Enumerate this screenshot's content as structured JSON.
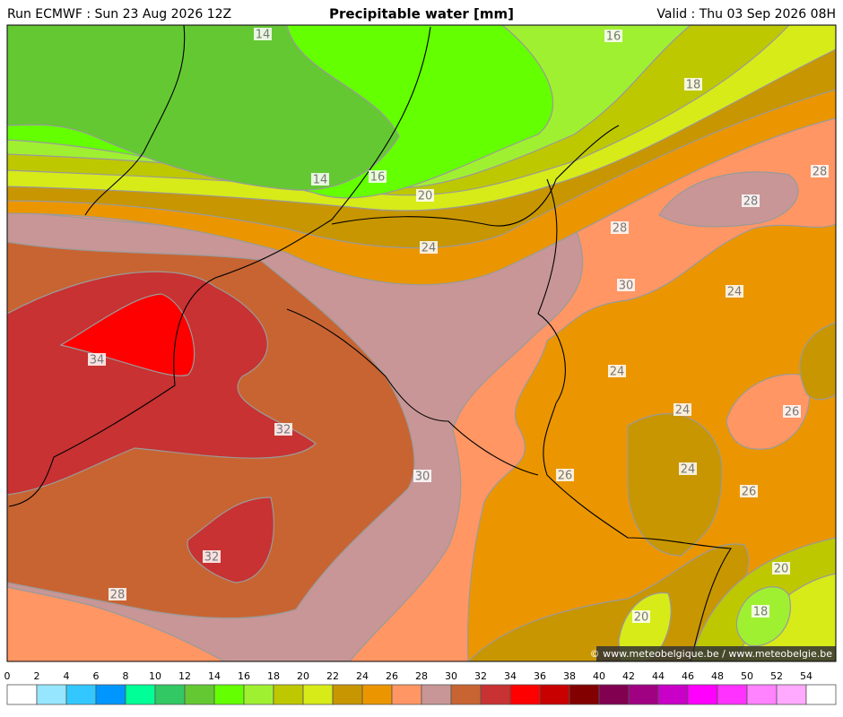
{
  "header": {
    "run": "Run ECMWF : Sun 23 Aug 2026 12Z",
    "title": "Precipitable water [mm]",
    "valid": "Valid : Thu 03 Sep 2026 08H"
  },
  "contour_labels": [
    14,
    16,
    18,
    14,
    16,
    20,
    28,
    28,
    28,
    24,
    30,
    24,
    34,
    24,
    24,
    26,
    32,
    24,
    30,
    26,
    26,
    32,
    20,
    28,
    18,
    20
  ],
  "credit": "© www.meteobelgique.be / www.meteobelgie.be",
  "colorbar": {
    "ticks": [
      0,
      2,
      4,
      6,
      8,
      10,
      12,
      14,
      16,
      18,
      20,
      22,
      24,
      26,
      28,
      30,
      32,
      34,
      36,
      38,
      40,
      42,
      44,
      46,
      48,
      50,
      52,
      54
    ],
    "colors": [
      "#ffffff",
      "#96e6ff",
      "#32c8ff",
      "#0096ff",
      "#00ff96",
      "#32c864",
      "#64c832",
      "#64ff00",
      "#a0f032",
      "#bec800",
      "#d7eb19",
      "#c89600",
      "#eb9600",
      "#ff9664",
      "#c89696",
      "#c86432",
      "#c83232",
      "#ff0000",
      "#c80000",
      "#820000",
      "#820050",
      "#a00082",
      "#c800c8",
      "#ff00ff",
      "#ff32ff",
      "#ff82ff",
      "#ffaaff",
      "#ffffff"
    ]
  }
}
